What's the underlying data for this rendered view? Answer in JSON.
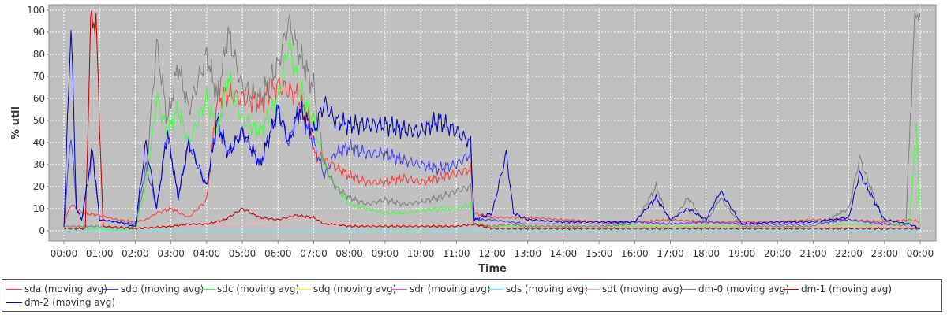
{
  "chart_data": {
    "type": "line",
    "title": "",
    "xlabel": "Time",
    "ylabel": "% util",
    "ylim": [
      0,
      100
    ],
    "yticks": [
      0,
      10,
      20,
      30,
      40,
      50,
      60,
      70,
      80,
      90,
      100
    ],
    "xlim": [
      0,
      24
    ],
    "xticks": [
      "00:00",
      "01:00",
      "02:00",
      "03:00",
      "04:00",
      "05:00",
      "06:00",
      "07:00",
      "08:00",
      "09:00",
      "10:00",
      "11:00",
      "12:00",
      "13:00",
      "14:00",
      "15:00",
      "16:00",
      "17:00",
      "18:00",
      "19:00",
      "20:00",
      "21:00",
      "22:00",
      "23:00",
      "00:00"
    ],
    "grid": true,
    "background": "#c0c0c0",
    "legend_position": "bottom",
    "series": [
      {
        "name": "sda (moving avg)",
        "color": "#ff3c3c",
        "x": [
          0,
          0.2,
          0.5,
          1,
          1.5,
          2,
          2.3,
          2.6,
          3,
          3.5,
          4,
          4.3,
          4.6,
          5,
          5.5,
          6,
          6.5,
          6.9,
          7,
          7.5,
          8,
          8.5,
          9,
          9.5,
          10,
          10.5,
          11,
          11.4,
          11.5,
          12,
          13,
          14,
          15,
          16,
          17,
          18,
          19,
          20,
          21,
          22,
          23,
          23.7,
          24
        ],
        "y": [
          3,
          12,
          8,
          7,
          5,
          4,
          5,
          8,
          10,
          6,
          14,
          60,
          62,
          60,
          58,
          66,
          62,
          50,
          35,
          30,
          25,
          22,
          22,
          24,
          22,
          24,
          26,
          28,
          8,
          6,
          6,
          5,
          4,
          4,
          5,
          4,
          4,
          4,
          5,
          5,
          4,
          5,
          4
        ]
      },
      {
        "name": "sdb (moving avg)",
        "color": "#4040ff",
        "x": [
          0,
          0.2,
          0.35,
          0.5,
          0.8,
          1,
          1.5,
          2,
          2.3,
          2.6,
          2.9,
          3.2,
          3.5,
          4,
          4.3,
          4.6,
          5,
          5.5,
          6,
          6.3,
          6.6,
          7,
          7.3,
          7.6,
          8,
          8.5,
          9,
          9.5,
          10,
          10.5,
          11,
          11.4,
          11.5,
          12,
          12.5,
          13,
          14,
          15,
          16,
          17,
          18,
          19,
          20,
          21,
          22,
          23,
          23.7,
          24
        ],
        "y": [
          2,
          45,
          10,
          5,
          35,
          5,
          4,
          3,
          30,
          10,
          45,
          15,
          40,
          20,
          50,
          35,
          45,
          30,
          55,
          40,
          55,
          40,
          25,
          35,
          38,
          35,
          35,
          32,
          30,
          28,
          30,
          35,
          5,
          5,
          4,
          3,
          3,
          3,
          4,
          3,
          4,
          3,
          3,
          3,
          5,
          3,
          2,
          2
        ]
      },
      {
        "name": "sdc (moving avg)",
        "color": "#40ff40",
        "x": [
          0,
          0.5,
          1,
          1.5,
          2,
          2.3,
          2.6,
          2.9,
          3.2,
          3.5,
          4,
          4.3,
          4.6,
          5,
          5.5,
          6,
          6.3,
          6.6,
          7,
          7.3,
          7.6,
          8,
          8.5,
          9,
          9.5,
          10,
          10.5,
          11,
          11.4,
          11.5,
          12,
          13,
          14,
          15,
          16,
          17,
          18,
          19,
          20,
          21,
          22,
          23,
          23.7,
          23.9,
          24
        ],
        "y": [
          1,
          1,
          1,
          0,
          1,
          20,
          60,
          45,
          55,
          40,
          60,
          45,
          70,
          50,
          45,
          60,
          85,
          65,
          50,
          30,
          20,
          12,
          10,
          8,
          8,
          9,
          10,
          10,
          12,
          3,
          2,
          2,
          2,
          2,
          2,
          2,
          2,
          2,
          2,
          2,
          3,
          2,
          3,
          50,
          1
        ]
      },
      {
        "name": "sdq (moving avg)",
        "color": "#ffff00",
        "x": [
          0,
          24
        ],
        "y": [
          0,
          0
        ]
      },
      {
        "name": "sdr (moving avg)",
        "color": "#ff40ff",
        "x": [
          0,
          24
        ],
        "y": [
          0,
          0
        ]
      },
      {
        "name": "sds (moving avg)",
        "color": "#40ffff",
        "x": [
          0,
          24
        ],
        "y": [
          0,
          0
        ]
      },
      {
        "name": "sdt (moving avg)",
        "color": "#ffafaf",
        "x": [
          0,
          0.6,
          0.75,
          0.9,
          1.1,
          2,
          3,
          4,
          5,
          6,
          6.5,
          7,
          7.2,
          8,
          12,
          24
        ],
        "y": [
          1,
          1,
          95,
          95,
          2,
          1,
          2,
          3,
          3,
          4,
          5,
          6,
          4,
          3,
          3,
          2
        ]
      },
      {
        "name": "dm-0 (moving avg)",
        "color": "#808080",
        "x": [
          0,
          0.5,
          1,
          1.5,
          2,
          2.3,
          2.6,
          2.9,
          3.2,
          3.5,
          4,
          4.3,
          4.6,
          5,
          5.5,
          6,
          6.3,
          6.6,
          7,
          7.3,
          7.6,
          8,
          8.5,
          9,
          9.5,
          10,
          10.5,
          11,
          11.4,
          11.5,
          12,
          12.5,
          13,
          14,
          15,
          16,
          16.6,
          17,
          17.5,
          18,
          18.4,
          19,
          20,
          21,
          22,
          22.3,
          23,
          23.6,
          23.85,
          24
        ],
        "y": [
          2,
          2,
          2,
          1,
          2,
          25,
          85,
          50,
          75,
          55,
          80,
          60,
          90,
          65,
          60,
          75,
          95,
          80,
          65,
          30,
          20,
          15,
          12,
          14,
          12,
          13,
          15,
          18,
          20,
          3,
          2,
          3,
          2,
          2,
          2,
          3,
          20,
          3,
          15,
          3,
          15,
          2,
          2,
          2,
          10,
          33,
          3,
          3,
          99,
          99
        ]
      },
      {
        "name": "dm-1 (moving avg)",
        "color": "#c00000",
        "x": [
          0,
          0.6,
          0.75,
          0.9,
          1.1,
          2,
          3,
          3.5,
          4,
          4.5,
          5,
          5.5,
          6,
          6.5,
          7,
          7.3,
          7.6,
          8,
          9,
          10,
          11,
          11.5,
          12,
          13,
          14,
          15,
          16,
          17,
          18,
          19,
          20,
          21,
          22,
          23,
          24
        ],
        "y": [
          1,
          1,
          95,
          95,
          2,
          1,
          2,
          3,
          3,
          5,
          10,
          6,
          5,
          7,
          6,
          3,
          3,
          2,
          2,
          2,
          2,
          3,
          1,
          1,
          1,
          1,
          1,
          1,
          1,
          1,
          1,
          1,
          1,
          1,
          1
        ]
      },
      {
        "name": "dm-2 (moving avg)",
        "color": "#0000c0",
        "x": [
          0,
          0.2,
          0.35,
          0.5,
          0.8,
          1,
          1.5,
          2,
          2.3,
          2.6,
          2.9,
          3.2,
          3.5,
          4,
          4.3,
          4.6,
          5,
          5.5,
          6,
          6.3,
          6.6,
          7,
          7.3,
          7.6,
          8,
          8.5,
          9,
          9.5,
          10,
          10.5,
          11,
          11.4,
          11.5,
          12,
          12.4,
          12.6,
          13,
          14,
          15,
          16,
          16.6,
          17,
          17.5,
          18,
          18.4,
          19,
          20,
          21,
          22,
          22.3,
          23,
          23.7,
          24
        ],
        "y": [
          2,
          95,
          10,
          5,
          37,
          5,
          4,
          2,
          40,
          10,
          45,
          15,
          40,
          20,
          50,
          35,
          45,
          30,
          55,
          40,
          55,
          45,
          58,
          50,
          48,
          48,
          48,
          46,
          45,
          50,
          45,
          40,
          5,
          8,
          35,
          8,
          5,
          4,
          4,
          4,
          15,
          5,
          10,
          5,
          18,
          3,
          4,
          4,
          6,
          26,
          5,
          3,
          1
        ]
      }
    ]
  }
}
